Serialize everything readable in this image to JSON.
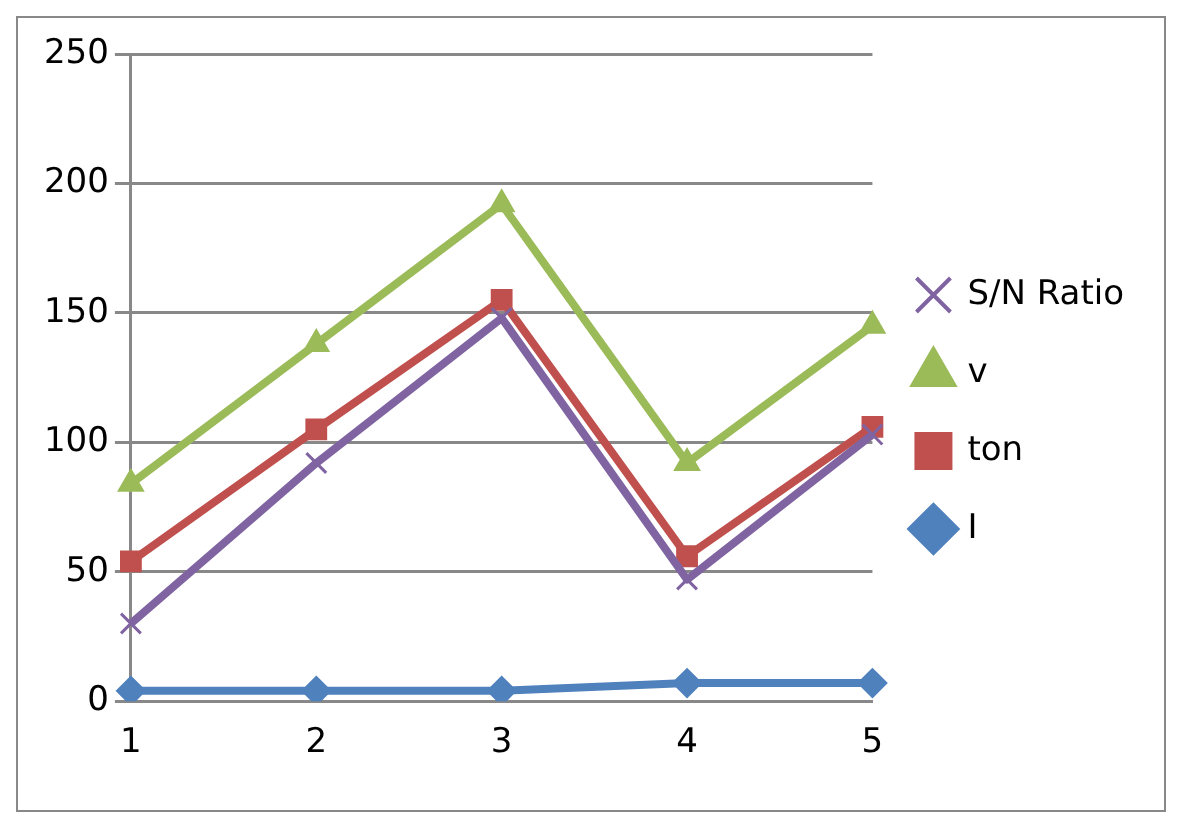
{
  "chart_data": {
    "type": "line",
    "categories": [
      "1",
      "2",
      "3",
      "4",
      "5"
    ],
    "series": [
      {
        "name": "S/N Ratio",
        "color": "#8064a2",
        "marker": "cross",
        "values": [
          30,
          92,
          148,
          47,
          103
        ]
      },
      {
        "name": "v",
        "color": "#9bbb59",
        "marker": "triangle",
        "values": [
          84,
          138,
          192,
          92,
          145
        ]
      },
      {
        "name": "ton",
        "color": "#c0504d",
        "marker": "square",
        "values": [
          54,
          105,
          155,
          56,
          106
        ]
      },
      {
        "name": "I",
        "color": "#4f81bd",
        "marker": "diamond",
        "values": [
          4,
          4,
          4,
          7,
          7
        ]
      }
    ],
    "ylim": [
      0,
      250
    ],
    "yticks": [
      0,
      50,
      100,
      150,
      200,
      250
    ],
    "grid": "y",
    "legend": "right"
  }
}
